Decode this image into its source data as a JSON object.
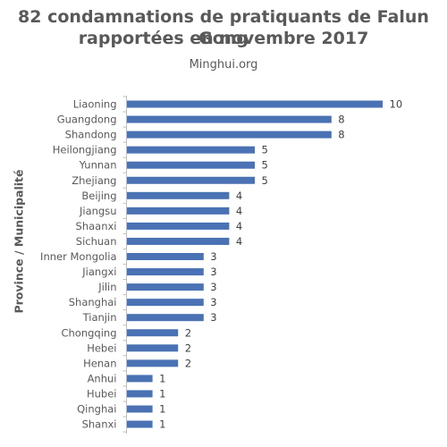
{
  "title_line1": "82 condamnations de pratiquants de Falun Gong",
  "title_line2": "rapportées en novembre 2017",
  "subtitle": "Minghui.org",
  "colors": {
    "bar": "#4a72b4",
    "axis": "#bfbfbf",
    "text": "#595959"
  },
  "chart_data": {
    "type": "bar",
    "orientation": "horizontal",
    "title": "82 condamnations de pratiquants de Falun Gong rapportées en novembre 2017",
    "subtitle": "Minghui.org",
    "xlabel": "",
    "ylabel": "Province / Municipalité",
    "xlim": [
      0,
      10
    ],
    "grid": false,
    "data_labels": true,
    "categories": [
      "Liaoning",
      "Guangdong",
      "Shandong",
      "Heilongjiang",
      "Yunnan",
      "Zhejiang",
      "Beijing",
      "Jiangsu",
      "Shaanxi",
      "Sichuan",
      "Inner Mongolia",
      "Jiangxi",
      "Jilin",
      "Shanghai",
      "Tianjin",
      "Chongqing",
      "Hebei",
      "Henan",
      "Anhui",
      "Hubei",
      "Qinghai",
      "Shanxi"
    ],
    "values": [
      10,
      8,
      8,
      5,
      5,
      5,
      4,
      4,
      4,
      4,
      3,
      3,
      3,
      3,
      3,
      2,
      2,
      2,
      1,
      1,
      1,
      1
    ]
  }
}
